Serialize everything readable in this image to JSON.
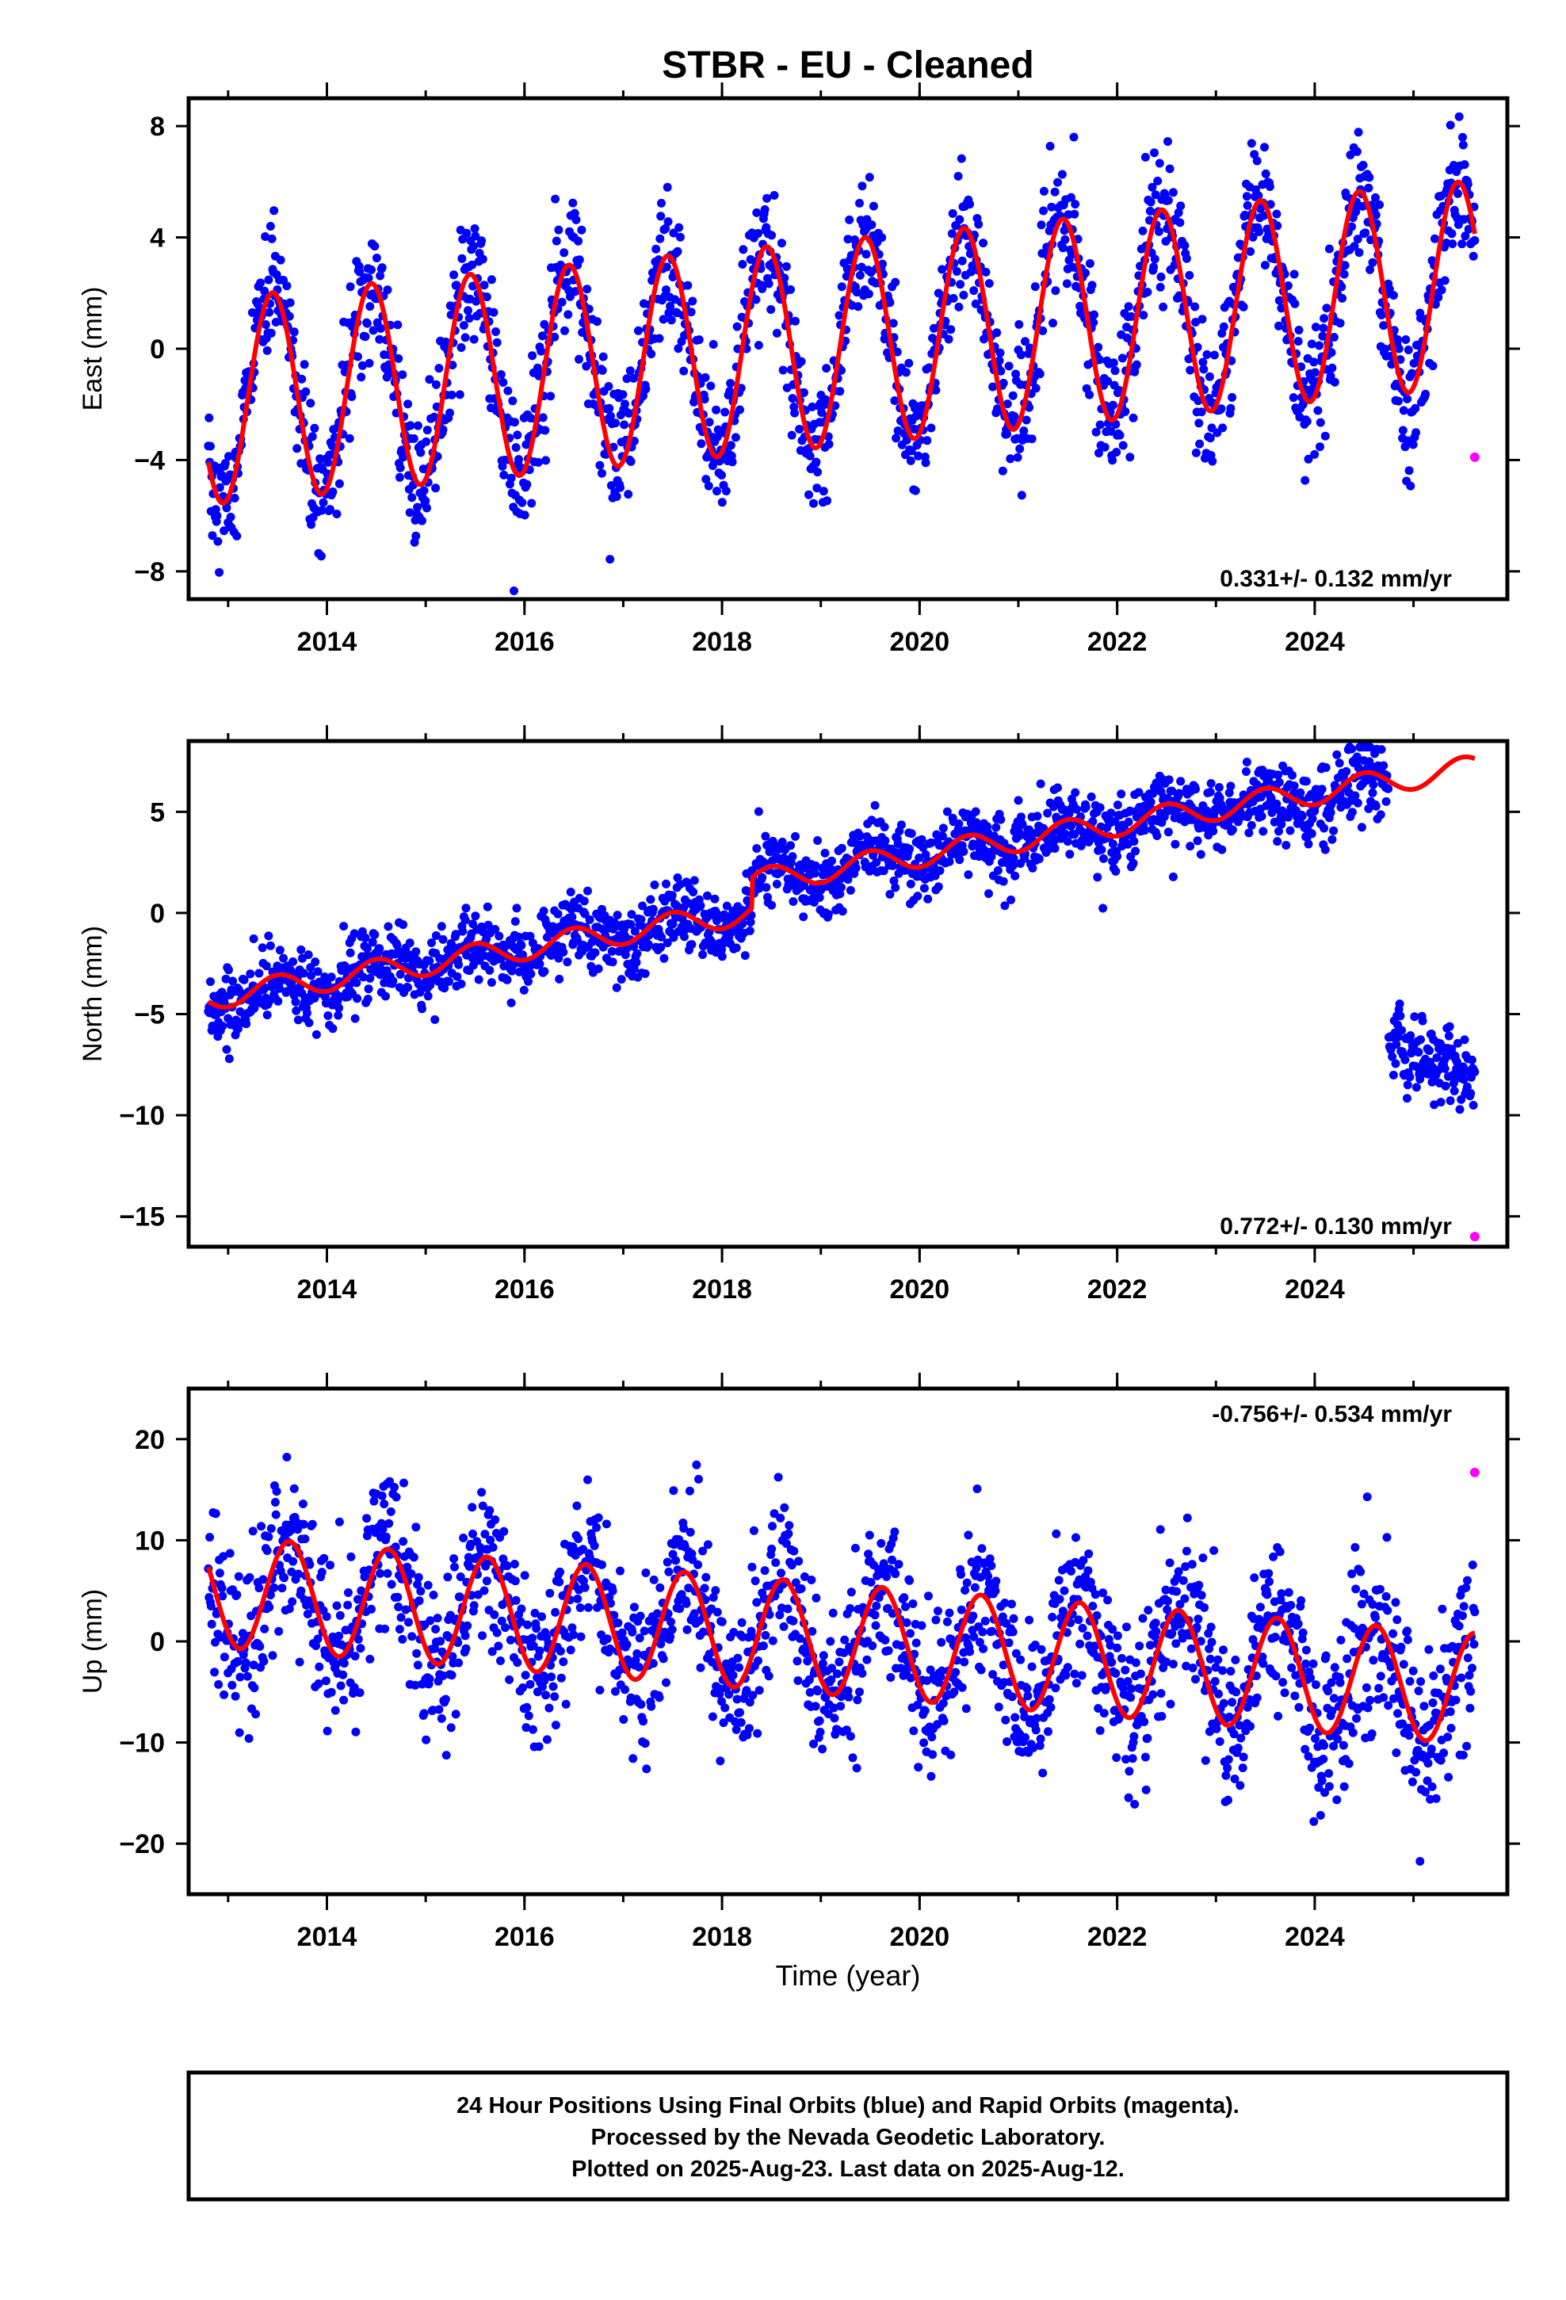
{
  "title": "STBR  - EU - Cleaned",
  "xlabel": "Time (year)",
  "footer": [
    "24 Hour Positions Using Final Orbits (blue) and Rapid Orbits (magenta).",
    "Processed by the Nevada Geodetic Laboratory.",
    "Plotted on 2025-Aug-23. Last data on 2025-Aug-12."
  ],
  "colors": {
    "final": "#0000ff",
    "rapid": "#ff00ff",
    "model": "#ff0000"
  },
  "chart_data": [
    {
      "type": "scatter",
      "ylabel": "East (mm)",
      "xlim": [
        2012.6,
        2025.95
      ],
      "ylim": [
        -9,
        9
      ],
      "xticks": [
        2014,
        2016,
        2018,
        2020,
        2022,
        2024
      ],
      "yticks": [
        -8,
        -4,
        0,
        4,
        8
      ],
      "rate_label": "0.331+/- 0.132 mm/yr",
      "rate_position": "bottom-right",
      "rapid_point": {
        "x": 2025.62,
        "y": -3.9
      },
      "final_series": {
        "x_range": [
          2012.8,
          2025.62
        ],
        "trend_start": -1.9,
        "trend_slope": 0.331,
        "annual_amplitude": 3.7,
        "peak_phase": 0.45,
        "noise": 1.2
      },
      "model": {
        "start": 2012.8,
        "end": 2025.62,
        "at_start": -5.5,
        "at_end": 3.3,
        "annual_amplitude": 3.7,
        "peak_phase": 0.45
      }
    },
    {
      "type": "scatter",
      "ylabel": "North (mm)",
      "xlim": [
        2012.6,
        2025.95
      ],
      "ylim": [
        -16.5,
        8.5
      ],
      "xticks": [
        2014,
        2016,
        2018,
        2020,
        2022,
        2024
      ],
      "yticks": [
        -15,
        -10,
        -5,
        0,
        5
      ],
      "rate_label": "0.772+/- 0.130 mm/yr",
      "rate_position": "bottom-right",
      "rapid_point": {
        "x": 2025.62,
        "y": -16.0
      },
      "final_series": {
        "x_range": [
          2012.8,
          2024.75
        ],
        "trend_start": -4.2,
        "trend_slope": 0.772,
        "offset_epoch": 2018.3,
        "offset_size": 1.5,
        "annual_amplitude": 0.6,
        "noise": 0.9
      },
      "offset_cluster": {
        "x_range": [
          2024.75,
          2025.62
        ],
        "y_start": -6.5,
        "y_end": -8.3,
        "noise": 0.9
      },
      "model": {
        "start": 2012.8,
        "end": 2025.62,
        "at_start": -4.7,
        "at_end": 5.2,
        "annual_amplitude": 0.6
      }
    },
    {
      "type": "scatter",
      "ylabel": "Up (mm)",
      "xlim": [
        2012.6,
        2025.95
      ],
      "ylim": [
        -25,
        25
      ],
      "xticks": [
        2014,
        2016,
        2018,
        2020,
        2022,
        2024
      ],
      "yticks": [
        -20,
        -10,
        0,
        10,
        20
      ],
      "rate_label": "-0.756+/- 0.534 mm/yr",
      "rate_position": "top-right",
      "rapid_point": {
        "x": 2025.62,
        "y": 16.7
      },
      "final_series": {
        "x_range": [
          2012.8,
          2025.62
        ],
        "trend_start": 5.0,
        "trend_slope": -0.756,
        "annual_amplitude": 5.5,
        "peak_phase": 0.62,
        "noise": 4.0
      },
      "model": {
        "start": 2012.8,
        "end": 2025.62,
        "at_start": 5.0,
        "at_end": 1.3,
        "annual_amplitude": 5.5,
        "peak_phase": 0.62
      }
    }
  ]
}
